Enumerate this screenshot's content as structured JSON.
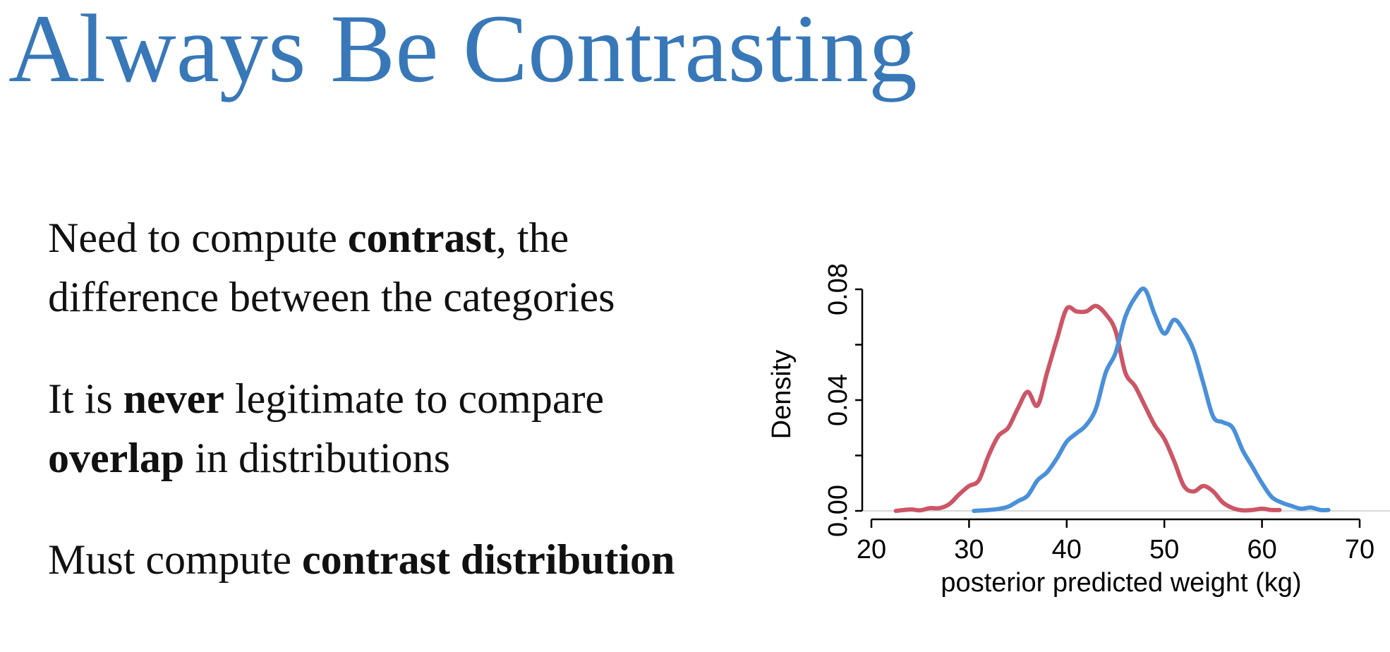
{
  "slide": {
    "title": "Always Be Contrasting",
    "bullets": [
      {
        "parts": [
          {
            "text": "Need to compute ",
            "bold": false
          },
          {
            "text": "contrast",
            "bold": true
          },
          {
            "text": ", the difference between the categories",
            "bold": false
          }
        ]
      },
      {
        "parts": [
          {
            "text": "It is ",
            "bold": false
          },
          {
            "text": "never",
            "bold": true
          },
          {
            "text": " legitimate to compare ",
            "bold": false
          },
          {
            "text": "overlap",
            "bold": true
          },
          {
            "text": " in distributions",
            "bold": false
          }
        ]
      },
      {
        "parts": [
          {
            "text": "Must compute ",
            "bold": false
          },
          {
            "text": "contrast distribution",
            "bold": true
          }
        ]
      }
    ]
  },
  "chart_data": {
    "type": "line",
    "title": "",
    "xlabel": "posterior predicted weight (kg)",
    "ylabel": "Density",
    "xlim": [
      20,
      70
    ],
    "ylim": [
      0,
      0.08
    ],
    "xticks": [
      20,
      30,
      40,
      50,
      60,
      70
    ],
    "yticks": [
      "0.00",
      "0.04",
      "0.08"
    ],
    "grid": false,
    "colors": {
      "red": "#cc5566",
      "blue": "#4a90d9",
      "axis": "#000000"
    },
    "series": [
      {
        "color": "#cc5566",
        "x": [
          22.5,
          24,
          25,
          26,
          27,
          28,
          29,
          30,
          31,
          32,
          33,
          34,
          35,
          36,
          37,
          38,
          39,
          40,
          41,
          42,
          43,
          44,
          45,
          46,
          47,
          48,
          49,
          50,
          51,
          52,
          53,
          54,
          55,
          56,
          57,
          58,
          59,
          60,
          61,
          61.8
        ],
        "y": [
          0.0,
          0.0005,
          0.0002,
          0.001,
          0.001,
          0.0025,
          0.006,
          0.009,
          0.011,
          0.02,
          0.027,
          0.03,
          0.037,
          0.043,
          0.038,
          0.05,
          0.062,
          0.073,
          0.072,
          0.072,
          0.074,
          0.071,
          0.065,
          0.05,
          0.045,
          0.038,
          0.031,
          0.026,
          0.018,
          0.009,
          0.007,
          0.009,
          0.007,
          0.003,
          0.001,
          0.0002,
          0.0003,
          0.0008,
          0.0003,
          0.0003
        ]
      },
      {
        "color": "#4a90d9",
        "x": [
          30.5,
          32,
          33,
          34,
          35,
          36,
          37,
          38,
          39,
          40,
          41,
          42,
          43,
          44,
          45,
          46,
          47,
          48,
          49,
          50,
          51,
          52,
          53,
          54,
          55,
          56,
          57,
          58,
          59,
          60,
          61,
          62,
          63,
          64,
          65,
          66,
          66.8
        ],
        "y": [
          0.0,
          0.0003,
          0.0007,
          0.0015,
          0.0035,
          0.0055,
          0.011,
          0.014,
          0.019,
          0.025,
          0.028,
          0.031,
          0.037,
          0.05,
          0.057,
          0.07,
          0.077,
          0.08,
          0.071,
          0.064,
          0.069,
          0.065,
          0.058,
          0.046,
          0.034,
          0.032,
          0.03,
          0.022,
          0.016,
          0.01,
          0.005,
          0.003,
          0.0018,
          0.0008,
          0.0012,
          0.0003,
          0.0003
        ]
      }
    ]
  }
}
